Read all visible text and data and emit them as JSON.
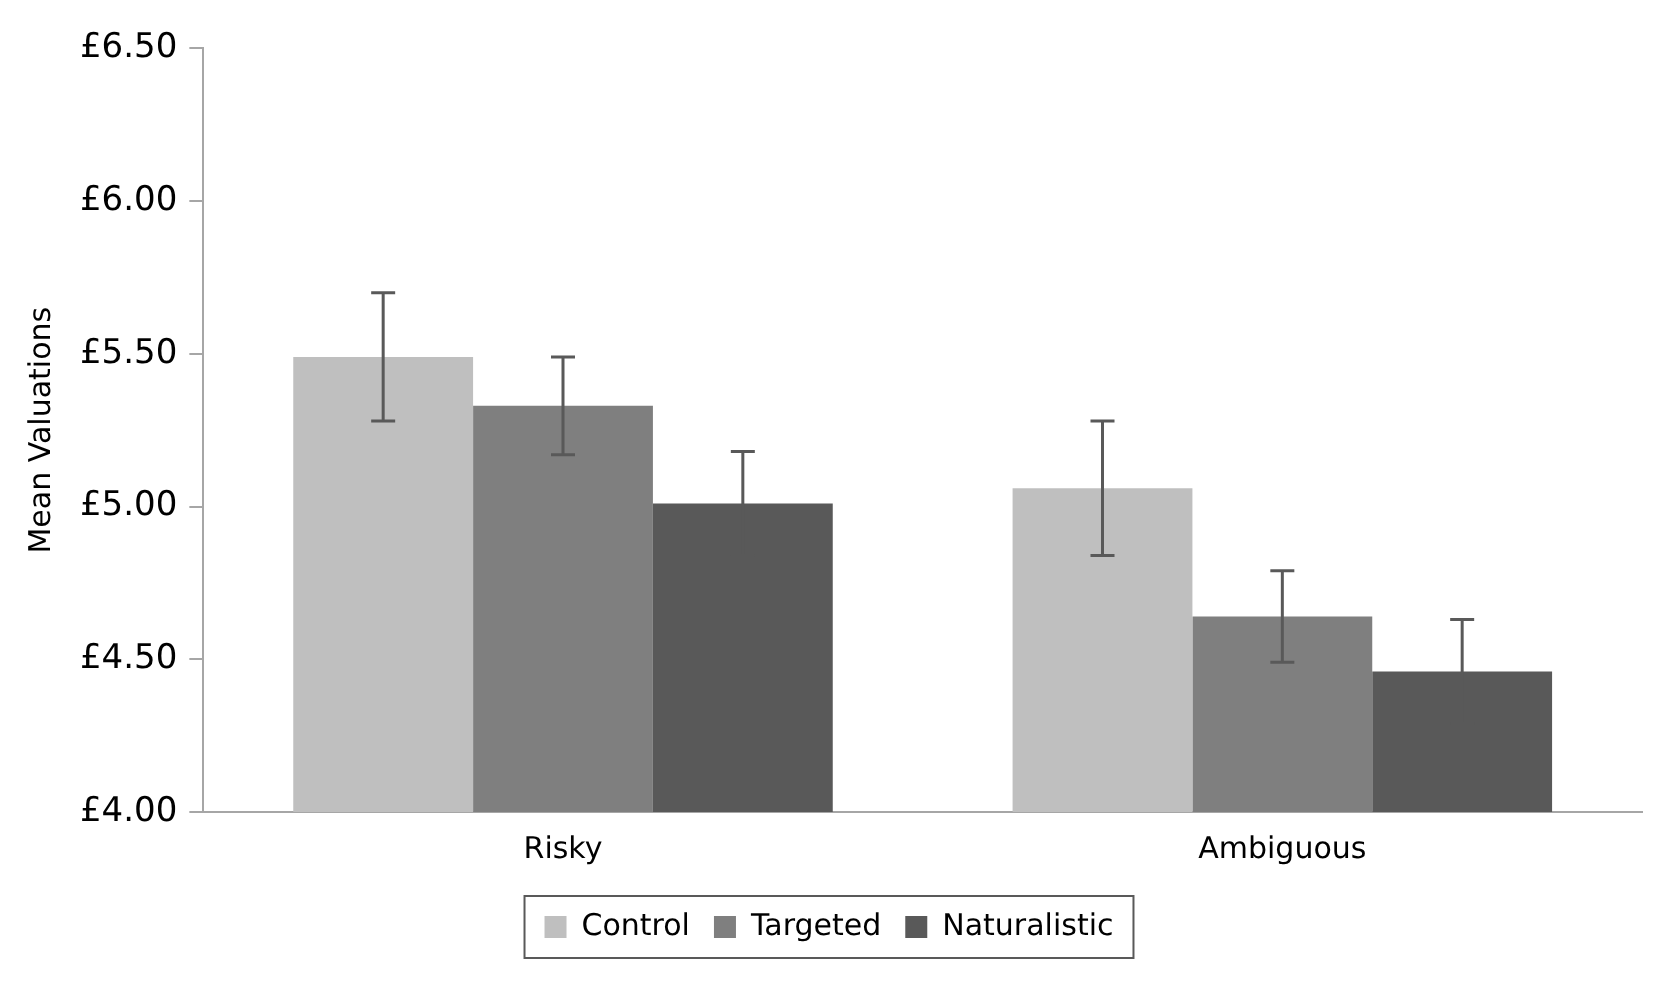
{
  "chart_data": {
    "type": "bar",
    "ylabel": "Mean Valuations",
    "categories": [
      "Risky",
      "Ambiguous"
    ],
    "series": [
      {
        "name": "Control",
        "color": "#bfbfbf",
        "values": [
          5.49,
          5.06
        ],
        "errors": [
          0.21,
          0.22
        ]
      },
      {
        "name": "Targeted",
        "color": "#7f7f7f",
        "values": [
          5.33,
          4.64
        ],
        "errors": [
          0.16,
          0.15
        ]
      },
      {
        "name": "Naturalistic",
        "color": "#595959",
        "values": [
          5.01,
          4.46
        ],
        "errors": [
          0.17,
          0.17
        ]
      }
    ],
    "ylim": [
      4,
      6.5
    ],
    "yticks": [
      {
        "value": 4,
        "label": "£4.00"
      },
      {
        "value": 4.5,
        "label": "£4.50"
      },
      {
        "value": 5,
        "label": "£5.00"
      },
      {
        "value": 5.5,
        "label": "£5.50"
      },
      {
        "value": 6,
        "label": "£6.00"
      },
      {
        "value": 6.5,
        "label": "£6.50"
      }
    ],
    "grid": false,
    "legend": "bottom"
  }
}
